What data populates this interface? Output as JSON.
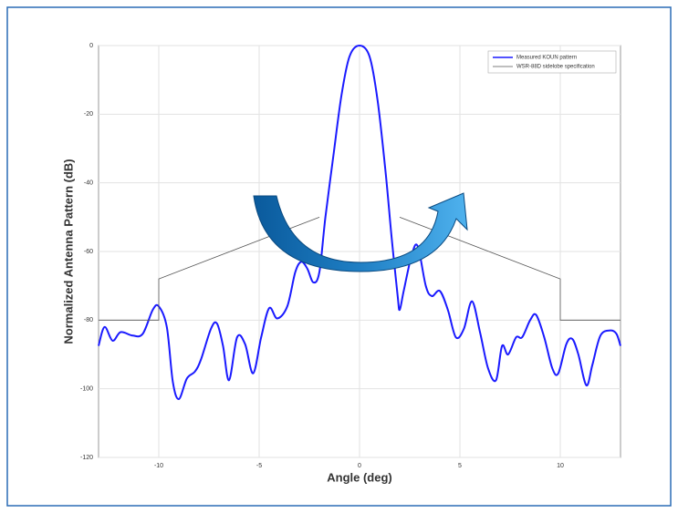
{
  "chart_data": {
    "type": "line",
    "x_label": "Angle (deg)",
    "y_label": "Normalized Antenna Pattern (dB)",
    "xlim": [
      -13,
      13
    ],
    "xticks": [
      -10,
      -5,
      0,
      5,
      10
    ],
    "ylim": [
      -120,
      0
    ],
    "yticks": [
      0,
      -20,
      -40,
      -60,
      -80,
      -100,
      -120
    ],
    "grid": true,
    "legend": "upper right",
    "series": [
      {
        "name": "Measured KOUN pattern",
        "color": "#1a1aff",
        "x": [
          -13,
          -12.7,
          -12.3,
          -11.9,
          -11.3,
          -10.8,
          -10.3,
          -10.0,
          -9.6,
          -9.3,
          -9.0,
          -8.6,
          -8.2,
          -7.9,
          -7.4,
          -7.1,
          -6.8,
          -6.5,
          -6.1,
          -5.7,
          -5.3,
          -4.9,
          -4.5,
          -4.1,
          -3.6,
          -3.2,
          -2.9,
          -2.6,
          -2.3,
          -2.0,
          -1.7,
          -1.3,
          -0.9,
          -0.5,
          0,
          0.5,
          0.9,
          1.3,
          1.6,
          1.9,
          2.0,
          2.2,
          2.6,
          2.9,
          3.3,
          3.6,
          4.0,
          4.4,
          4.8,
          5.2,
          5.6,
          6.0,
          6.4,
          6.8,
          7.1,
          7.4,
          7.8,
          8.1,
          8.5,
          8.8,
          9.2,
          9.6,
          9.9,
          10.3,
          10.6,
          10.9,
          11.3,
          11.6,
          12.0,
          12.5,
          12.8,
          13
        ],
        "values": [
          -87.5,
          -82,
          -86,
          -83.5,
          -84.5,
          -84,
          -77,
          -76,
          -82,
          -98,
          -103,
          -97,
          -95,
          -91.5,
          -82.5,
          -81,
          -87.5,
          -97.5,
          -85,
          -87,
          -95.5,
          -85,
          -76.5,
          -79.5,
          -76,
          -66,
          -63,
          -65,
          -69,
          -66,
          -50,
          -32,
          -14.5,
          -3.2,
          0,
          -3.2,
          -16,
          -37,
          -56,
          -73,
          -77,
          -71.5,
          -61,
          -58.5,
          -70,
          -73,
          -71.5,
          -77,
          -85,
          -82.5,
          -74.5,
          -83.5,
          -94,
          -97.5,
          -87.5,
          -90,
          -85,
          -85,
          -80,
          -78.5,
          -85,
          -94,
          -95.5,
          -87,
          -85.5,
          -90,
          -99,
          -93,
          -84.5,
          -83,
          -84,
          -87.5
        ]
      },
      {
        "name": "WSR-88D sidelobe specification",
        "color": "#555555",
        "x": [
          -13,
          -10,
          -10,
          -2,
          null,
          2,
          10,
          10,
          13
        ],
        "values": [
          -80,
          -80,
          -68,
          -50,
          null,
          -50,
          -68,
          -80,
          -80
        ]
      }
    ]
  }
}
